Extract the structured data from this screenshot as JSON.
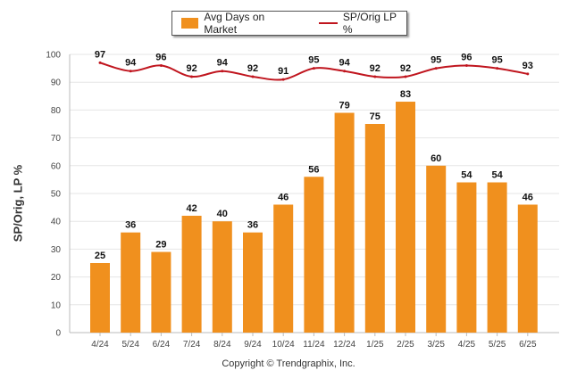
{
  "chart_data": {
    "type": "bar",
    "categories": [
      "4/24",
      "5/24",
      "6/24",
      "7/24",
      "8/24",
      "9/24",
      "10/24",
      "11/24",
      "12/24",
      "1/25",
      "2/25",
      "3/25",
      "4/25",
      "5/25",
      "6/25"
    ],
    "series": [
      {
        "name": "Avg Days on Market",
        "type": "bar",
        "color": "#f0901e",
        "values": [
          25,
          36,
          29,
          42,
          40,
          36,
          46,
          56,
          79,
          75,
          83,
          60,
          54,
          54,
          46
        ]
      },
      {
        "name": "SP/Orig LP %",
        "type": "line",
        "color": "#c0151e",
        "values": [
          97,
          94,
          96,
          92,
          94,
          92,
          91,
          95,
          94,
          92,
          92,
          95,
          96,
          95,
          93
        ]
      }
    ],
    "ylabel": "SP/Orig, LP %",
    "ylim": [
      0,
      100
    ],
    "yticks": [
      0,
      10,
      20,
      30,
      40,
      50,
      60,
      70,
      80,
      90,
      100
    ],
    "grid": true,
    "legend_position": "top-center"
  },
  "footer": {
    "copyright": "Copyright © Trendgraphix, Inc."
  }
}
